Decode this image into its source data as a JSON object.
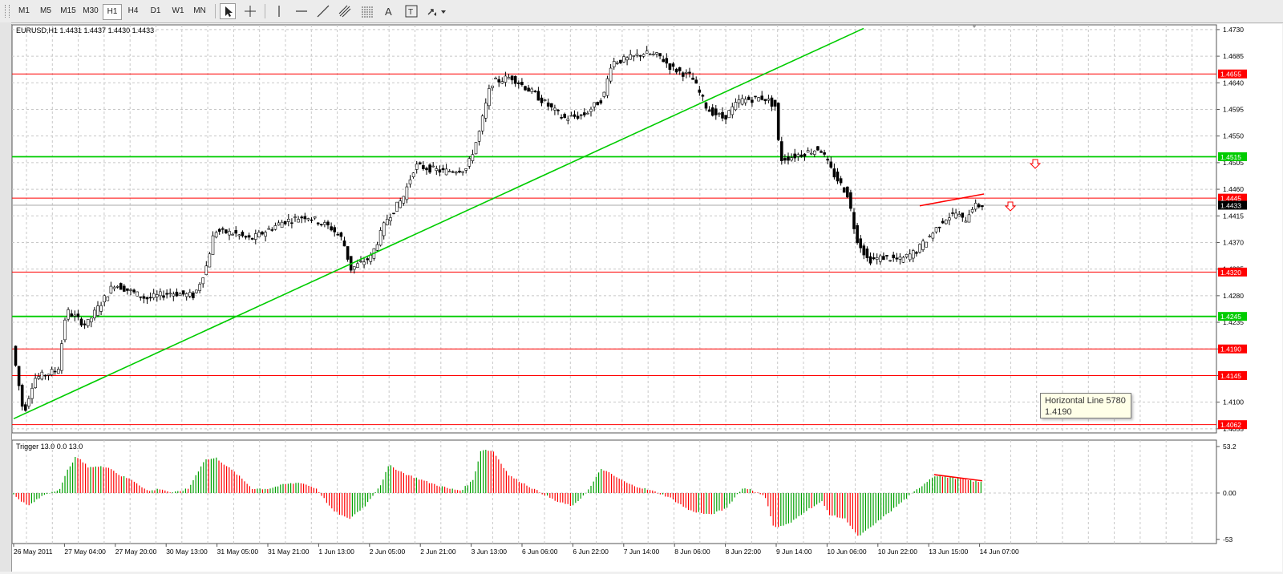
{
  "toolbar": {
    "timeframes": [
      "M1",
      "M5",
      "M15",
      "M30",
      "H1",
      "H4",
      "D1",
      "W1",
      "MN"
    ],
    "active_timeframe": "H1",
    "tools": [
      "cursor-icon",
      "crosshair-icon",
      "vertical-line-icon",
      "horizontal-line-icon",
      "trendline-icon",
      "equidistant-channel-icon",
      "fibonacci-icon",
      "text-icon",
      "text-label-icon",
      "arrows-dropdown-icon"
    ],
    "text_tool_label": "A"
  },
  "chart": {
    "header": "EURUSD,H1  1.4431 1.4437 1.4430 1.4433",
    "price_scale": [
      "1.4730",
      "1.4685",
      "1.4640",
      "1.4595",
      "1.4550",
      "1.4505",
      "1.4460",
      "1.4415",
      "1.4370",
      "1.4325",
      "1.4280",
      "1.4235",
      "1.4190",
      "1.4145",
      "1.4100",
      "1.4055"
    ],
    "level_labels": [
      {
        "price": "1.4655",
        "color": "#ff0000"
      },
      {
        "price": "1.4515",
        "color": "#00cc00"
      },
      {
        "price": "1.4445",
        "color": "#ff0000"
      },
      {
        "price": "1.4433",
        "color": "#000000"
      },
      {
        "price": "1.4320",
        "color": "#ff0000"
      },
      {
        "price": "1.4245",
        "color": "#00cc00"
      },
      {
        "price": "1.4190",
        "color": "#ff0000"
      },
      {
        "price": "1.4145",
        "color": "#ff0000"
      },
      {
        "price": "1.4062",
        "color": "#ff0000"
      }
    ],
    "time_labels": [
      "26 May 2011",
      "27 May 04:00",
      "27 May 20:00",
      "30 May 13:00",
      "31 May 05:00",
      "31 May 21:00",
      "1 Jun 13:00",
      "2 Jun 05:00",
      "2 Jun 21:00",
      "3 Jun 13:00",
      "6 Jun 06:00",
      "6 Jun 22:00",
      "7 Jun 14:00",
      "8 Jun 06:00",
      "8 Jun 22:00",
      "9 Jun 14:00",
      "10 Jun 06:00",
      "10 Jun 22:00",
      "13 Jun 15:00",
      "14 Jun 07:00"
    ],
    "tooltip": {
      "title": "Horizontal Line 5780",
      "value": "1.4190"
    }
  },
  "indicator": {
    "header": "Trigger 13.0 0.0 13.0",
    "scale": [
      "53.2",
      "0.00",
      "-53"
    ]
  },
  "colors": {
    "bull": "#00a000",
    "bear": "#ff0000",
    "support": "#00cc00",
    "resistance": "#ff0000",
    "grid": "#c8c8c8"
  }
}
